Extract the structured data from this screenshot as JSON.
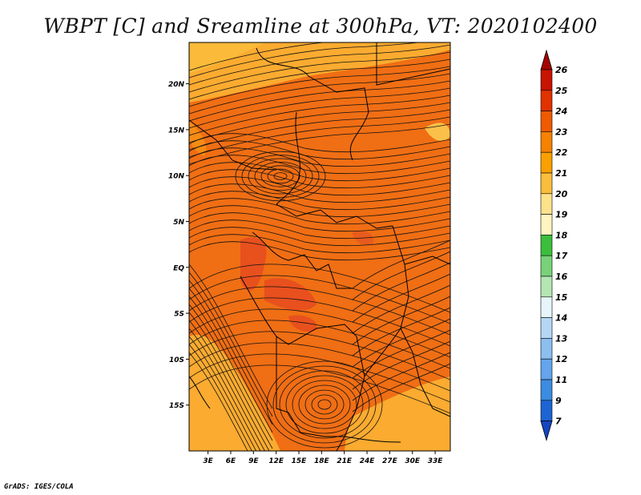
{
  "title": "WBPT [C] and Sreamline at 300hPa, VT: 2020102400",
  "credit": "GrADS: IGES/COLA",
  "map": {
    "lat_labels": [
      "20N",
      "15N",
      "10N",
      "5N",
      "EQ",
      "5S",
      "10S",
      "15S"
    ],
    "lat_values": [
      20,
      15,
      10,
      5,
      0,
      -5,
      -10,
      -15
    ],
    "lon_labels": [
      "3E",
      "6E",
      "9E",
      "12E",
      "15E",
      "18E",
      "21E",
      "24E",
      "27E",
      "30E",
      "33E"
    ],
    "lon_values": [
      3,
      6,
      9,
      12,
      15,
      18,
      21,
      24,
      27,
      30,
      33
    ],
    "lat_range": [
      -20,
      24.5
    ],
    "lon_range": [
      0.5,
      35
    ]
  },
  "colorbar": {
    "levels": [
      "26",
      "25",
      "24",
      "23",
      "22",
      "21",
      "20",
      "19",
      "18",
      "17",
      "16",
      "15",
      "14",
      "13",
      "12",
      "11",
      "9",
      "7"
    ],
    "colors": [
      "#a50000",
      "#c81400",
      "#e13200",
      "#f05a00",
      "#f58200",
      "#faa000",
      "#fbbe3c",
      "#fde28c",
      "#fff5c0",
      "#3cbe3c",
      "#78d278",
      "#b4e6b4",
      "#e6f5fa",
      "#b4d7f5",
      "#8cbef0",
      "#64a5eb",
      "#3c8ce1",
      "#1e64d2",
      "#1446be"
    ]
  },
  "fields": {
    "dominant": "#f06e14",
    "warm_patch": "#e8501e",
    "cool_patch": "#fbb43c",
    "contour_line": "#111111",
    "boundary_line": "#000000"
  }
}
